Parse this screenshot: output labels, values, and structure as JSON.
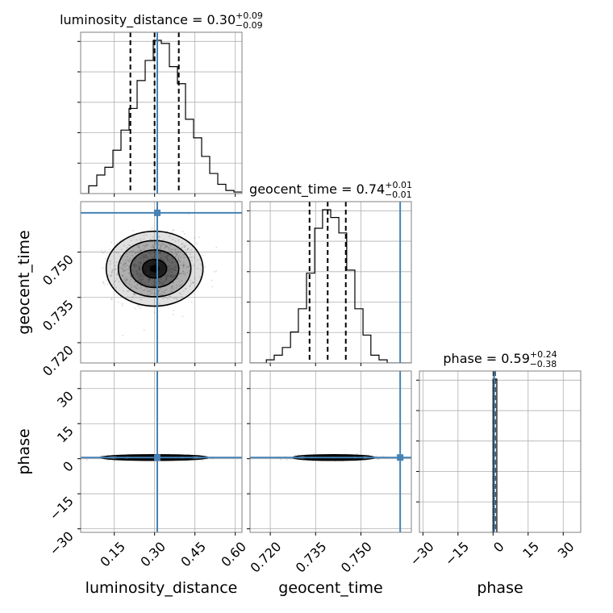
{
  "colors": {
    "truth": "#4682b4",
    "hist": "#000000",
    "grid": "#b0b0b0",
    "frame": "#808080",
    "density": "#000000"
  },
  "chart_data": {
    "type": "corner",
    "parameters": [
      "luminosity_distance",
      "geocent_time",
      "phase"
    ],
    "grid": true,
    "titles": {
      "luminosity_distance": {
        "prefix": "luminosity_distance = 0.30",
        "plus": "+0.09",
        "minus": "−0.09"
      },
      "geocent_time": {
        "prefix": "geocent_time = 0.74",
        "plus": "+0.01",
        "minus": "−0.01"
      },
      "phase": {
        "prefix": "phase = 0.59",
        "plus": "+0.24",
        "minus": "−0.38"
      }
    },
    "axis_labels": {
      "luminosity_distance": "luminosity_distance",
      "geocent_time": "geocent_time",
      "phase": "phase"
    },
    "ranges": {
      "luminosity_distance": [
        0.025,
        0.625
      ],
      "geocent_time": [
        0.7133,
        0.7667
      ],
      "phase": [
        -31.5,
        37.5
      ]
    },
    "ticks": {
      "luminosity_distance": [
        0.15,
        0.3,
        0.45,
        0.6
      ],
      "geocent_time": [
        0.72,
        0.735,
        0.75
      ],
      "phase": [
        -30,
        -15,
        0,
        15,
        30
      ]
    },
    "tick_labels": {
      "luminosity_distance": [
        "0.15",
        "0.30",
        "0.45",
        "0.60"
      ],
      "geocent_time": [
        "0.720",
        "0.735",
        "0.750"
      ],
      "phase": [
        "−30",
        "−15",
        "0",
        "15",
        "30"
      ]
    },
    "truths": {
      "luminosity_distance": 0.31,
      "geocent_time": 0.763,
      "phase": 0.5
    },
    "quantiles": {
      "luminosity_distance": [
        0.21,
        0.3,
        0.39
      ],
      "geocent_time": [
        0.733,
        0.739,
        0.745
      ],
      "phase": [
        0.2,
        0.6,
        0.8
      ]
    },
    "histograms": {
      "luminosity_distance": {
        "edges": [
          0.025,
          0.055,
          0.085,
          0.115,
          0.145,
          0.175,
          0.205,
          0.235,
          0.265,
          0.295,
          0.325,
          0.355,
          0.385,
          0.415,
          0.445,
          0.475,
          0.505,
          0.535,
          0.565,
          0.595,
          0.625
        ],
        "counts": [
          0.0,
          0.05,
          0.12,
          0.17,
          0.28,
          0.41,
          0.55,
          0.73,
          0.86,
          0.99,
          0.97,
          0.82,
          0.71,
          0.48,
          0.36,
          0.24,
          0.13,
          0.06,
          0.02,
          0.01
        ]
      },
      "geocent_time": {
        "edges": [
          0.7133,
          0.716,
          0.7187,
          0.7213,
          0.724,
          0.7267,
          0.7293,
          0.732,
          0.7347,
          0.7373,
          0.74,
          0.7427,
          0.7453,
          0.748,
          0.7507,
          0.7533,
          0.756,
          0.7587,
          0.7613,
          0.764,
          0.7667
        ],
        "counts": [
          0.0,
          0.0,
          0.02,
          0.05,
          0.1,
          0.2,
          0.35,
          0.58,
          0.87,
          0.99,
          0.94,
          0.84,
          0.6,
          0.35,
          0.18,
          0.05,
          0.02,
          0.0,
          0.0,
          0.0
        ]
      },
      "phase": {
        "edges": [
          -0.8,
          0.0,
          0.8,
          1.6,
          2.4
        ],
        "counts": [
          0.0,
          0.95,
          0.95,
          0.0
        ]
      }
    },
    "joint": {
      "geocent_time_vs_luminosity_distance": {
        "center": [
          0.3,
          0.7445
        ],
        "spread": [
          0.09,
          0.0062
        ],
        "contour_sigmas": [
          0.5,
          1.0,
          1.5,
          2.0
        ]
      },
      "phase_vs_luminosity_distance": {
        "center": [
          0.3,
          0.5
        ],
        "spread": [
          0.1,
          0.6
        ]
      },
      "phase_vs_geocent_time": {
        "center": [
          0.741,
          0.5
        ],
        "spread": [
          0.0068,
          0.6
        ]
      }
    }
  }
}
